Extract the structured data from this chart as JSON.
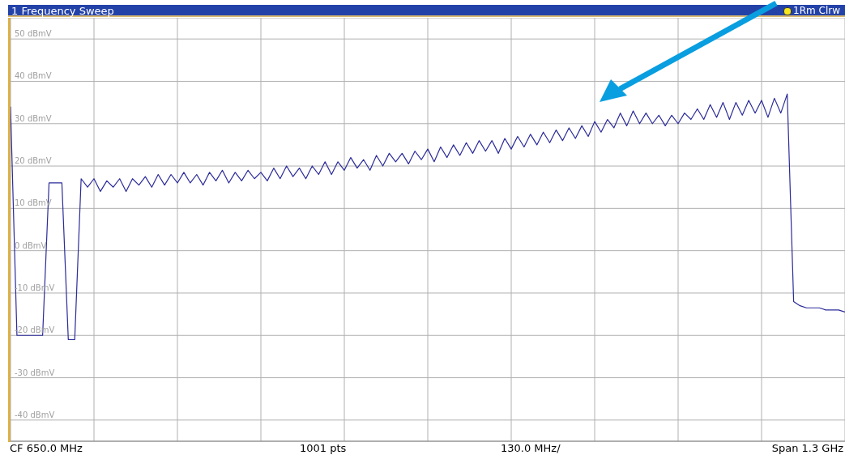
{
  "chart_data": {
    "type": "line",
    "title": "1 Frequency Sweep",
    "categories": [
      null,
      null,
      null,
      null,
      null,
      null,
      null,
      null,
      null,
      null,
      null,
      null,
      null,
      null,
      null,
      null,
      null,
      null,
      null,
      null,
      null,
      null,
      null,
      null,
      null,
      null,
      null,
      null,
      null,
      null,
      null,
      null,
      null,
      null,
      null,
      null,
      null,
      null,
      null,
      null,
      null,
      null,
      null,
      null,
      null,
      null,
      null,
      null,
      null,
      null,
      null,
      null,
      null,
      null,
      null,
      null,
      null,
      null,
      null,
      null,
      null,
      null,
      null,
      null,
      null,
      null,
      null,
      null,
      null,
      null,
      null,
      null,
      null,
      null,
      null,
      null,
      null,
      null,
      null,
      null,
      null,
      null,
      null,
      null,
      null,
      null,
      null,
      null,
      null,
      null,
      null,
      null,
      null,
      null,
      null,
      null,
      null,
      null,
      null,
      null,
      null,
      null,
      null,
      null,
      null,
      null,
      null,
      null,
      null,
      null,
      null,
      null,
      null,
      null,
      null,
      null,
      null,
      null,
      null,
      null,
      null,
      null,
      null,
      null,
      null,
      null,
      null,
      null,
      null,
      null,
      null
    ],
    "ylim": [
      -45,
      55
    ],
    "yticks": [
      {
        "value": -40,
        "label": "-40 dBmV"
      },
      {
        "value": -30,
        "label": "-30 dBmV"
      },
      {
        "value": -20,
        "label": "-20 dBmV"
      },
      {
        "value": -10,
        "label": "-10 dBmV"
      },
      {
        "value": 0,
        "label": "0 dBmV"
      },
      {
        "value": 10,
        "label": "10 dBmV"
      },
      {
        "value": 20,
        "label": "20 dBmV"
      },
      {
        "value": 30,
        "label": "30 dBmV"
      },
      {
        "value": 40,
        "label": "40 dBmV"
      },
      {
        "value": 50,
        "label": "50 dBmV"
      }
    ],
    "grid": true,
    "marker": "none",
    "line_style": "solid",
    "annotations": [
      "CF 650.0 MHz",
      "1001 pts",
      "130.0 MHz/",
      "Span 1.3 GHz",
      "1Rm Clrw"
    ],
    "series": [
      {
        "color": "#2b2b9a",
        "values": [
          34,
          -20,
          -20,
          -20,
          -20,
          -20,
          16,
          16,
          16,
          -21,
          -21,
          17,
          15,
          17,
          14,
          16.5,
          15,
          17,
          14,
          17,
          15.5,
          17.5,
          15,
          18,
          15.5,
          18,
          16,
          18.5,
          16,
          18,
          15.5,
          18.5,
          16.5,
          19,
          16,
          18.5,
          16.5,
          19,
          17,
          18.5,
          16.5,
          19.5,
          17,
          20,
          17.5,
          19.5,
          17,
          20,
          18,
          21,
          18,
          21,
          19,
          22,
          19.5,
          21.5,
          19,
          22.5,
          20,
          23,
          21,
          23,
          20.5,
          23.5,
          21.5,
          24,
          21,
          24.5,
          22,
          25,
          22.5,
          25.5,
          23,
          26,
          23.5,
          26,
          23,
          26.5,
          24,
          27,
          24.5,
          27.5,
          25,
          28,
          25.5,
          28.5,
          26,
          29,
          26.5,
          29.5,
          27,
          30.5,
          28,
          31,
          29,
          32.5,
          29.5,
          33,
          30,
          32.5,
          30,
          32,
          29.5,
          32,
          30,
          32.5,
          31,
          33.5,
          31,
          34.5,
          31.5,
          35,
          31,
          35,
          32,
          35.5,
          32.5,
          35.5,
          31.5,
          36,
          32.5,
          37,
          -12,
          -13,
          -13.5,
          -13.5,
          -13.5,
          -14,
          -14,
          -14,
          -14.5
        ]
      }
    ]
  }
}
